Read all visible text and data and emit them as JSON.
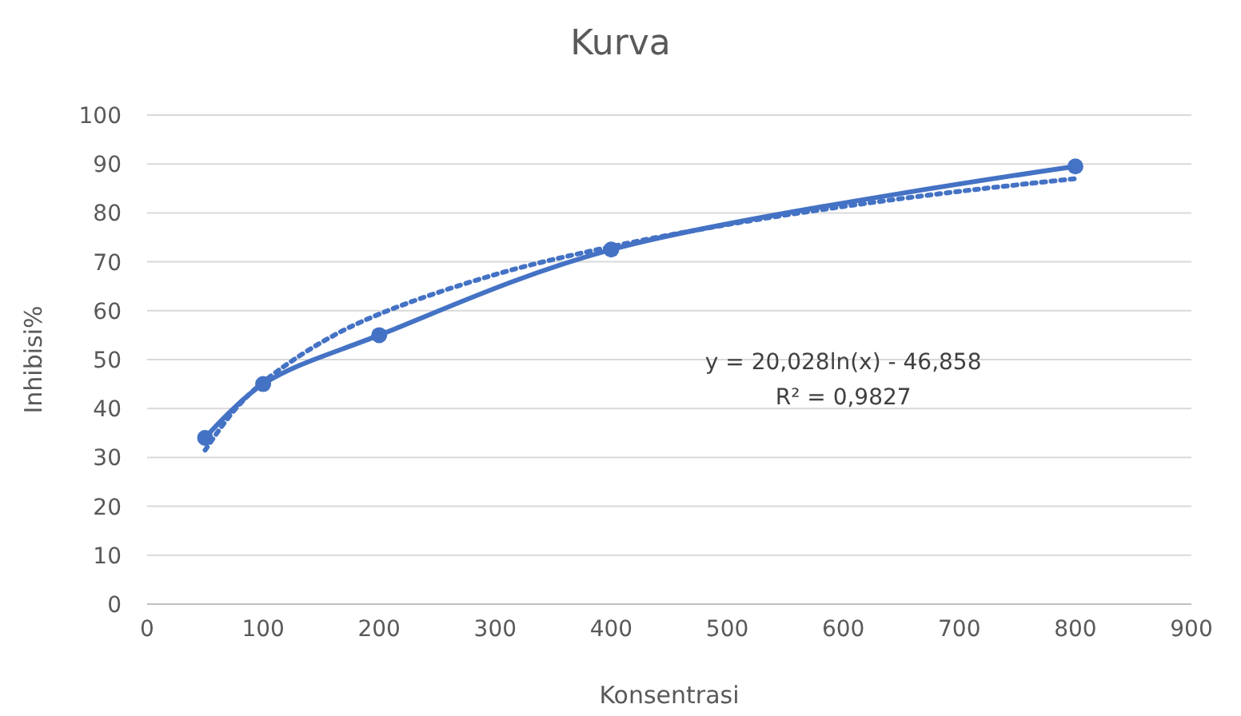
{
  "chart_data": {
    "type": "line",
    "title": "Kurva",
    "xlabel": "Konsentrasi",
    "ylabel": "Inhibisi%",
    "xlim": [
      0,
      900
    ],
    "xticks": [
      0,
      100,
      200,
      300,
      400,
      500,
      600,
      700,
      800,
      900
    ],
    "ylim": [
      0,
      100
    ],
    "yticks": [
      0,
      10,
      20,
      30,
      40,
      50,
      60,
      70,
      80,
      90,
      100
    ],
    "grid": "y",
    "series": [
      {
        "color": "#4472c4",
        "x": [
          50,
          100,
          200,
          400,
          800
        ],
        "values": [
          34,
          45,
          55,
          72.5,
          89.5
        ],
        "marker": "circle",
        "line_style": "solid"
      },
      {
        "type": "line",
        "color": "#4472c4",
        "x": [
          50,
          75,
          100,
          150,
          200,
          300,
          400,
          500,
          600,
          700,
          800
        ],
        "values": [
          31.5,
          39.6,
          45.4,
          53.5,
          59.3,
          67.4,
          73.1,
          77.6,
          81.3,
          84.4,
          87
        ],
        "marker": "none",
        "line_style": "dotted"
      }
    ],
    "annotations": [
      "y = 20,028ln(x) - 46,858",
      "R² = 0,9827"
    ]
  }
}
